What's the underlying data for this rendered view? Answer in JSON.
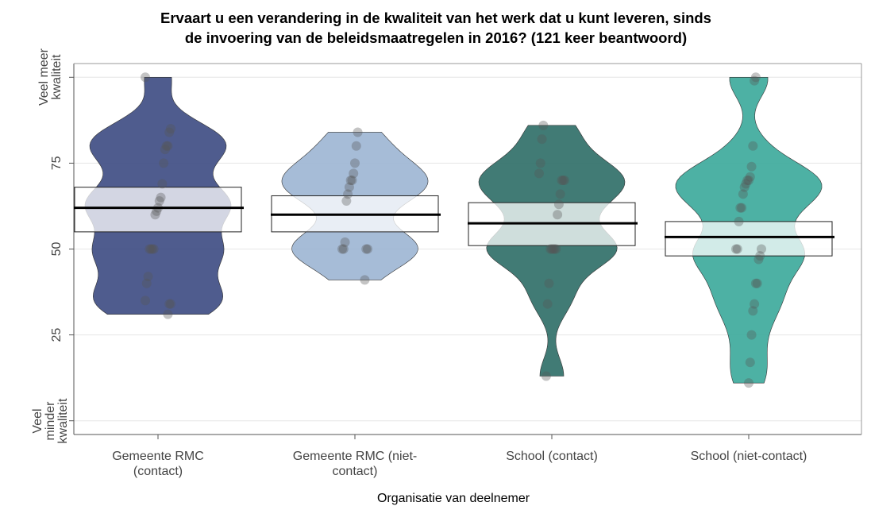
{
  "chart_data": {
    "type": "pirate",
    "title": "Ervaart u een verandering in de kwaliteit van het werk dat u kunt leveren, sinds de invoering van de beleidsmaatregelen in 2016? (121 keer beantwoord)",
    "x_label": "Organisatie van deelnemer",
    "ylim": [
      -4,
      104
    ],
    "yticks": [
      {
        "value": 0,
        "label": "Veel minder kwaliteit"
      },
      25,
      50,
      75,
      {
        "value": 100,
        "label": "Veel meer kwaliteit"
      }
    ],
    "grid": true,
    "groups": [
      {
        "name": "Gemeente RMC (contact)",
        "color": "#3c4a82",
        "mean": 62,
        "lower": 55,
        "upper": 68,
        "points": [
          100,
          85,
          84,
          80,
          80,
          79,
          75,
          69,
          65,
          64,
          62,
          61,
          60,
          50,
          50,
          50,
          50,
          42,
          40,
          35,
          34,
          34,
          31
        ]
      },
      {
        "name": "Gemeente RMC (niet-contact)",
        "color": "#9cb5d3",
        "mean": 60,
        "lower": 55,
        "upper": 65.5,
        "points": [
          84,
          80,
          75,
          72,
          70,
          70,
          68,
          66,
          64,
          52,
          50,
          50,
          50,
          50,
          41
        ]
      },
      {
        "name": "School (contact)",
        "color": "#2c6d66",
        "mean": 57.5,
        "lower": 51,
        "upper": 63.5,
        "points": [
          86,
          82,
          75,
          72,
          70,
          70,
          70,
          66,
          63,
          60,
          50,
          50,
          50,
          50,
          50,
          40,
          34,
          13
        ]
      },
      {
        "name": "School (niet-contact)",
        "color": "#3aa99a",
        "mean": 53.5,
        "lower": 48,
        "upper": 58,
        "points": [
          100,
          99,
          80,
          74,
          71,
          70,
          70,
          69,
          68,
          66,
          62,
          62,
          58,
          50,
          50,
          50,
          48,
          47,
          40,
          40,
          34,
          32,
          25,
          17,
          11
        ]
      }
    ]
  }
}
